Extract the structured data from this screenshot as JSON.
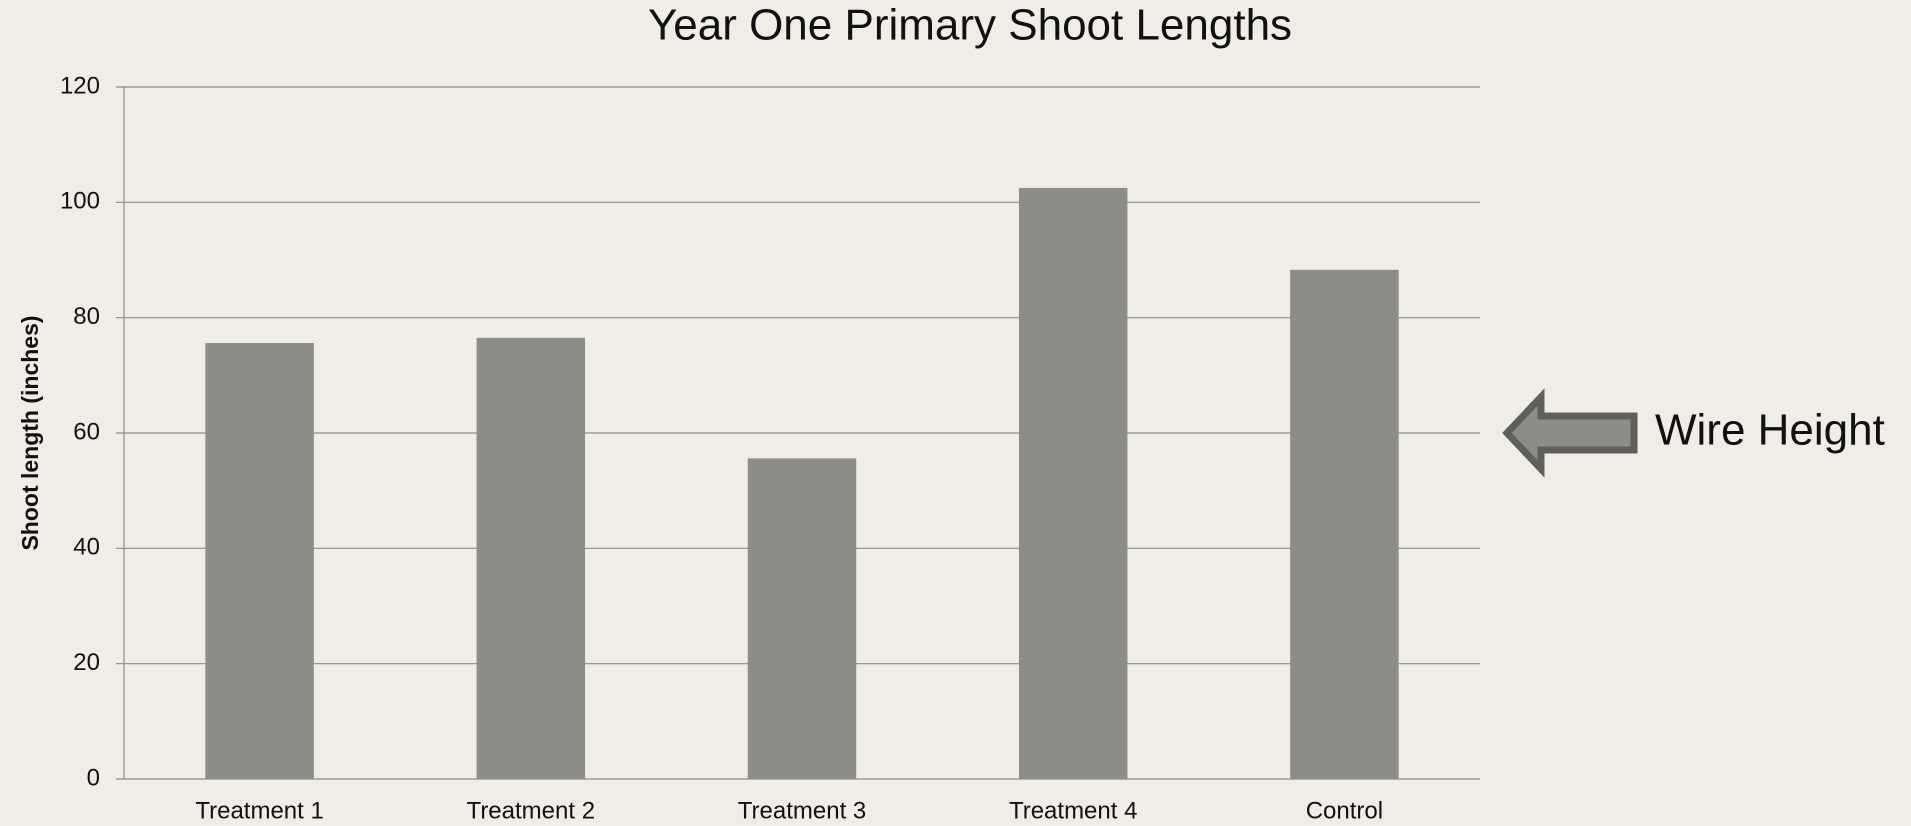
{
  "chart_data": {
    "type": "bar",
    "title": "Year One Primary Shoot Lengths",
    "y_label": "Shoot length (inches)",
    "categories": [
      "Treatment 1",
      "Treatment 2",
      "Treatment 3",
      "Treatment 4",
      "Control"
    ],
    "values": [
      75.6,
      76.5,
      55.6,
      102.5,
      88.3
    ],
    "color": "#8c8d86",
    "ylim": [
      0,
      120
    ],
    "yticks": [
      0,
      20,
      40,
      60,
      80,
      100,
      120
    ],
    "grid": true,
    "annotation": {
      "text": "Wire Height",
      "y": 60
    }
  }
}
